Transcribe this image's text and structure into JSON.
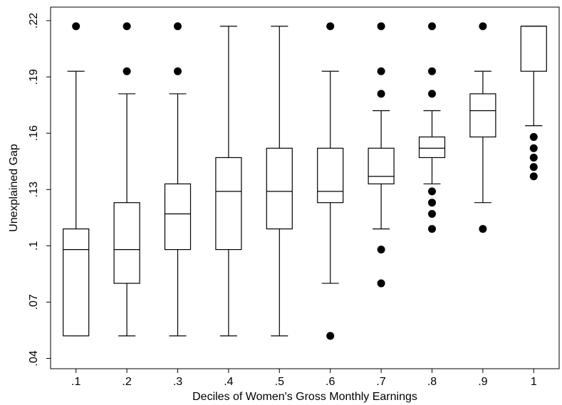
{
  "chart_data": {
    "type": "box",
    "xlabel": "Deciles of Women's Gross Monthly Earnings",
    "ylabel": "Unexplained Gap",
    "ylim": [
      0.0345,
      0.2272
    ],
    "xlim": [
      0.5,
      10.5
    ],
    "yticks": [
      0.04,
      0.07,
      0.1,
      0.13,
      0.16,
      0.19,
      0.22
    ],
    "ytick_labels": [
      ".04",
      ".07",
      ".1",
      ".13",
      ".16",
      ".19",
      ".22"
    ],
    "grid": false,
    "legend": false,
    "box_fill": "#ffffff",
    "line_color": "#000000",
    "outlier_color": "#000000",
    "boxes": [
      {
        "label": ".1",
        "whisker_low": 0.052,
        "q1": 0.052,
        "median": 0.098,
        "q3": 0.109,
        "whisker_high": 0.193,
        "outliers": [
          0.217
        ]
      },
      {
        "label": ".2",
        "whisker_low": 0.052,
        "q1": 0.08,
        "median": 0.098,
        "q3": 0.123,
        "whisker_high": 0.181,
        "outliers": [
          0.193,
          0.217
        ]
      },
      {
        "label": ".3",
        "whisker_low": 0.052,
        "q1": 0.098,
        "median": 0.117,
        "q3": 0.133,
        "whisker_high": 0.181,
        "outliers": [
          0.193,
          0.217
        ]
      },
      {
        "label": ".4",
        "whisker_low": 0.052,
        "q1": 0.098,
        "median": 0.129,
        "q3": 0.147,
        "whisker_high": 0.217,
        "outliers": []
      },
      {
        "label": ".5",
        "whisker_low": 0.052,
        "q1": 0.109,
        "median": 0.129,
        "q3": 0.152,
        "whisker_high": 0.217,
        "outliers": []
      },
      {
        "label": ".6",
        "whisker_low": 0.08,
        "q1": 0.123,
        "median": 0.129,
        "q3": 0.152,
        "whisker_high": 0.193,
        "outliers": [
          0.052,
          0.217
        ]
      },
      {
        "label": ".7",
        "whisker_low": 0.109,
        "q1": 0.133,
        "median": 0.137,
        "q3": 0.152,
        "whisker_high": 0.172,
        "outliers": [
          0.08,
          0.098,
          0.181,
          0.193,
          0.217
        ]
      },
      {
        "label": ".8",
        "whisker_low": 0.133,
        "q1": 0.147,
        "median": 0.152,
        "q3": 0.158,
        "whisker_high": 0.172,
        "outliers": [
          0.109,
          0.117,
          0.123,
          0.129,
          0.181,
          0.193,
          0.217
        ]
      },
      {
        "label": ".9",
        "whisker_low": 0.123,
        "q1": 0.158,
        "median": 0.172,
        "q3": 0.181,
        "whisker_high": 0.193,
        "outliers": [
          0.109,
          0.217
        ]
      },
      {
        "label": "1",
        "whisker_low": 0.164,
        "q1": 0.193,
        "median": 0.217,
        "q3": 0.217,
        "whisker_high": 0.217,
        "outliers": [
          0.137,
          0.142,
          0.147,
          0.152,
          0.158
        ]
      }
    ]
  }
}
